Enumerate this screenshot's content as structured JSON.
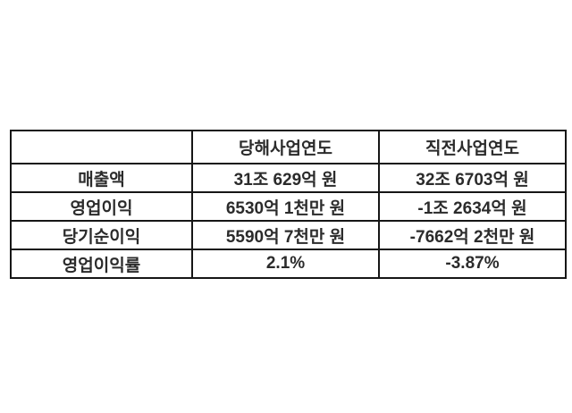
{
  "page": {
    "background_color": "#ffffff",
    "table_border_color": "#161616",
    "table_text_color": "#2b2b2b"
  },
  "chart_data": {
    "type": "table",
    "title": "",
    "columns": [
      "",
      "당해사업연도",
      "직전사업연도"
    ],
    "rows": [
      [
        "매출액",
        "31조 629억 원",
        "32조 6703억 원"
      ],
      [
        "영업이익",
        "6530억 1천만 원",
        "-1조 2634억 원"
      ],
      [
        "당기순이익",
        "5590억 7천만 원",
        "-7662억 2천만 원"
      ],
      [
        "영업이익률",
        "2.1%",
        "-3.87%"
      ]
    ],
    "row_labels": [
      "매출액",
      "영업이익",
      "당기순이익",
      "영업이익률"
    ],
    "series": [
      {
        "name": "당해사업연도",
        "values": [
          "31조 629억 원",
          "6530억 1천만 원",
          "5590억 7천만 원",
          "2.1%"
        ],
        "operating_margin_pct": 2.1
      },
      {
        "name": "직전사업연도",
        "values": [
          "32조 6703억 원",
          "-1조 2634억 원",
          "-7662억 2천만 원",
          "-3.87%"
        ],
        "operating_margin_pct": -3.87
      }
    ]
  }
}
